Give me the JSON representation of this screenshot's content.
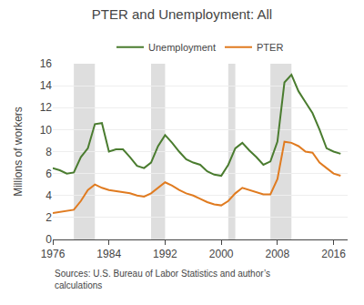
{
  "chart_data": {
    "type": "line",
    "title": "PTER and Unemployment: All",
    "ylabel": "Millions of workers",
    "source": "Sources: U.S. Bureau of Labor Statistics and author’s\ncalculations",
    "x": [
      1976,
      1977,
      1978,
      1979,
      1980,
      1981,
      1982,
      1983,
      1984,
      1985,
      1986,
      1987,
      1988,
      1989,
      1990,
      1991,
      1992,
      1993,
      1994,
      1995,
      1996,
      1997,
      1998,
      1999,
      2000,
      2001,
      2002,
      2003,
      2004,
      2005,
      2006,
      2007,
      2008,
      2009,
      2010,
      2011,
      2012,
      2013,
      2014,
      2015,
      2016,
      2017
    ],
    "series": [
      {
        "name": "Unemployment",
        "color": "#4a7c2f",
        "values": [
          6.5,
          6.3,
          6.0,
          6.1,
          7.5,
          8.3,
          10.5,
          10.6,
          8.0,
          8.2,
          8.2,
          7.5,
          6.7,
          6.5,
          7.0,
          8.5,
          9.5,
          8.8,
          8.0,
          7.3,
          7.0,
          6.8,
          6.2,
          5.9,
          5.8,
          6.8,
          8.3,
          8.8,
          8.1,
          7.5,
          6.8,
          7.1,
          8.9,
          14.3,
          15.0,
          13.5,
          12.5,
          11.5,
          10.0,
          8.3,
          8.0,
          7.8
        ]
      },
      {
        "name": "PTER",
        "color": "#e07b20",
        "values": [
          2.4,
          2.5,
          2.6,
          2.7,
          3.5,
          4.5,
          5.0,
          4.7,
          4.5,
          4.4,
          4.3,
          4.2,
          4.0,
          3.9,
          4.2,
          4.7,
          5.2,
          4.9,
          4.5,
          4.2,
          4.0,
          3.7,
          3.4,
          3.2,
          3.1,
          3.5,
          4.2,
          4.7,
          4.5,
          4.3,
          4.1,
          4.1,
          5.5,
          8.9,
          8.8,
          8.5,
          8.0,
          7.9,
          7.0,
          6.5,
          6.0,
          5.8
        ]
      }
    ],
    "recession_bands": [
      [
        1979,
        1982
      ],
      [
        1990,
        1992
      ],
      [
        2001,
        2002
      ],
      [
        2007,
        2010
      ]
    ],
    "xlim": [
      1976,
      2018
    ],
    "xticks": [
      1976,
      1984,
      1992,
      2000,
      2008,
      2016
    ],
    "ylim": [
      0,
      16
    ],
    "yticks": [
      0,
      2,
      4,
      6,
      8,
      10,
      12,
      14,
      16
    ],
    "grid": "y",
    "legend": "top"
  }
}
